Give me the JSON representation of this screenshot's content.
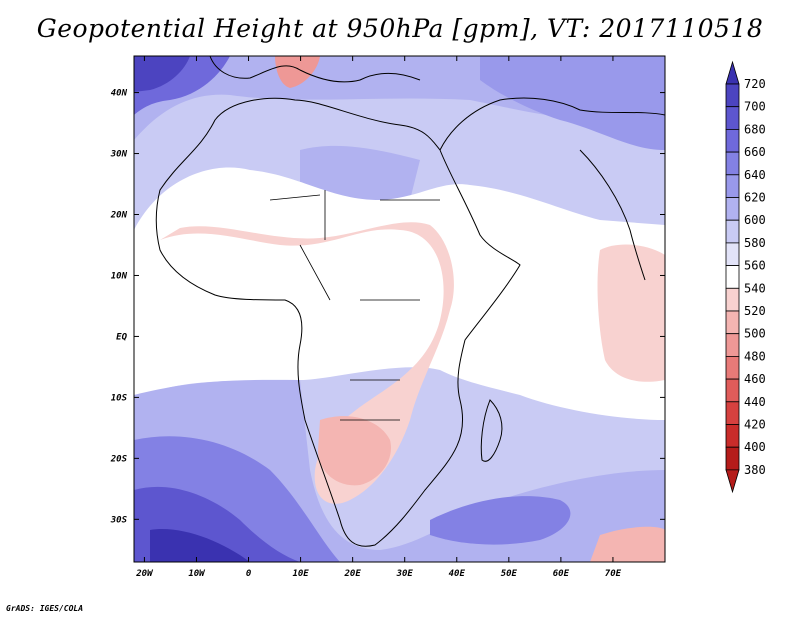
{
  "title": "Geopotential Height at 950hPa [gpm], VT: 2017110518",
  "footer": "GrADS: IGES/COLA",
  "map": {
    "region": "Africa",
    "lon_range": [
      -22,
      80
    ],
    "lat_range": [
      -37,
      46
    ],
    "lat_ticks": [
      {
        "lat": 40,
        "label": "40N"
      },
      {
        "lat": 30,
        "label": "30N"
      },
      {
        "lat": 20,
        "label": "20N"
      },
      {
        "lat": 10,
        "label": "10N"
      },
      {
        "lat": 0,
        "label": "EQ"
      },
      {
        "lat": -10,
        "label": "10S"
      },
      {
        "lat": -20,
        "label": "20S"
      },
      {
        "lat": -30,
        "label": "30S"
      }
    ],
    "lon_ticks": [
      {
        "lon": -20,
        "label": "20W"
      },
      {
        "lon": -10,
        "label": "10W"
      },
      {
        "lon": 0,
        "label": "0"
      },
      {
        "lon": 10,
        "label": "10E"
      },
      {
        "lon": 20,
        "label": "20E"
      },
      {
        "lon": 30,
        "label": "30E"
      },
      {
        "lon": 40,
        "label": "40E"
      },
      {
        "lon": 50,
        "label": "50E"
      },
      {
        "lon": 60,
        "label": "60E"
      },
      {
        "lon": 70,
        "label": "70E"
      }
    ]
  },
  "colorbar": {
    "levels": [
      "720",
      "700",
      "680",
      "660",
      "640",
      "620",
      "600",
      "580",
      "560",
      "540",
      "520",
      "500",
      "480",
      "460",
      "440",
      "420",
      "400",
      "380"
    ],
    "colors": [
      "#3a32b0",
      "#4c44c0",
      "#5d56cf",
      "#6f69db",
      "#8381e4",
      "#9999eb",
      "#b1b2f0",
      "#c9cbf4",
      "#e2e3f8",
      "#ffffff",
      "#f8d2d0",
      "#f4b5b2",
      "#ee9896",
      "#e87a78",
      "#e05c5a",
      "#d6413f",
      "#c92c2a",
      "#b51c1a"
    ]
  }
}
